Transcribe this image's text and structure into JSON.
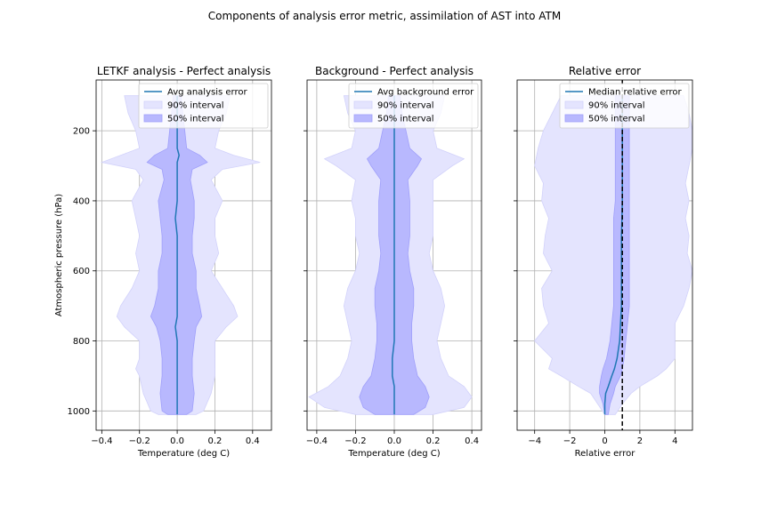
{
  "figure": {
    "title": "Components of analysis error metric, assimilation of AST into ATM"
  },
  "chart_data": [
    {
      "type": "area",
      "title": "LETKF analysis - Perfect analysis",
      "xlabel": "Temperature (deg C)",
      "ylabel": "Atmospheric pressure (hPa)",
      "xlim": [
        -0.43,
        0.5
      ],
      "ylim": [
        1055,
        55
      ],
      "y_inverted": true,
      "xticks": [
        -0.4,
        -0.2,
        0.0,
        0.2,
        0.4
      ],
      "xtick_labels": [
        "−0.4",
        "−0.2",
        "0.0",
        "0.2",
        "0.4"
      ],
      "yticks": [
        200,
        400,
        600,
        800,
        1000
      ],
      "ytick_labels": [
        "200",
        "400",
        "600",
        "800",
        "1000"
      ],
      "grid": true,
      "legend_position": "top-right",
      "legend": [
        "Avg analysis error",
        "90% interval",
        "50% interval"
      ],
      "levels": [
        100,
        150,
        200,
        250,
        270,
        290,
        310,
        340,
        400,
        450,
        500,
        550,
        600,
        650,
        700,
        730,
        760,
        800,
        850,
        880,
        900,
        950,
        1000,
        1010
      ],
      "avg": [
        0.0,
        0.0,
        0.0,
        0.0,
        0.01,
        0.0,
        0.0,
        0.0,
        0.0,
        -0.01,
        0.0,
        0.0,
        0.0,
        0.0,
        0.0,
        0.0,
        -0.01,
        0.0,
        0.0,
        0.0,
        0.0,
        0.0,
        0.0,
        0.0
      ],
      "p05": [
        -0.28,
        -0.26,
        -0.22,
        -0.2,
        -0.3,
        -0.4,
        -0.22,
        -0.18,
        -0.24,
        -0.22,
        -0.2,
        -0.22,
        -0.2,
        -0.24,
        -0.3,
        -0.32,
        -0.28,
        -0.2,
        -0.2,
        -0.22,
        -0.2,
        -0.18,
        -0.14,
        -0.1
      ],
      "p95": [
        0.28,
        0.26,
        0.22,
        0.2,
        0.3,
        0.44,
        0.24,
        0.18,
        0.24,
        0.2,
        0.2,
        0.22,
        0.18,
        0.24,
        0.3,
        0.32,
        0.26,
        0.2,
        0.2,
        0.2,
        0.2,
        0.18,
        0.14,
        0.1
      ],
      "p25": [
        -0.02,
        -0.03,
        -0.04,
        -0.05,
        -0.12,
        -0.16,
        -0.08,
        -0.07,
        -0.1,
        -0.09,
        -0.08,
        -0.08,
        -0.1,
        -0.1,
        -0.12,
        -0.14,
        -0.11,
        -0.09,
        -0.08,
        -0.08,
        -0.08,
        -0.09,
        -0.08,
        -0.05
      ],
      "p75": [
        0.02,
        0.03,
        0.04,
        0.05,
        0.12,
        0.16,
        0.08,
        0.07,
        0.09,
        0.09,
        0.08,
        0.08,
        0.1,
        0.1,
        0.12,
        0.13,
        0.1,
        0.09,
        0.08,
        0.08,
        0.08,
        0.09,
        0.08,
        0.05
      ]
    },
    {
      "type": "area",
      "title": "Background - Perfect analysis",
      "xlabel": "Temperature (deg C)",
      "ylabel": "",
      "xlim": [
        -0.45,
        0.45
      ],
      "ylim": [
        1055,
        55
      ],
      "y_inverted": true,
      "xticks": [
        -0.4,
        -0.2,
        0.0,
        0.2,
        0.4
      ],
      "xtick_labels": [
        "−0.4",
        "−0.2",
        "0.0",
        "0.2",
        "0.4"
      ],
      "yticks": [
        200,
        400,
        600,
        800,
        1000
      ],
      "ytick_labels": [
        "",
        "",
        "",
        "",
        ""
      ],
      "grid": true,
      "legend_position": "top-right",
      "legend": [
        "Avg background error",
        "90% interval",
        "50% interval"
      ],
      "levels": [
        100,
        150,
        200,
        250,
        280,
        300,
        340,
        400,
        450,
        500,
        550,
        600,
        650,
        700,
        750,
        800,
        850,
        900,
        930,
        960,
        990,
        1010
      ],
      "avg": [
        0.0,
        0.0,
        0.0,
        0.0,
        0.0,
        0.0,
        0.0,
        0.0,
        0.0,
        0.0,
        0.0,
        0.0,
        0.0,
        0.0,
        0.0,
        0.0,
        -0.01,
        -0.01,
        0.0,
        0.0,
        0.0,
        0.0
      ],
      "p05": [
        -0.26,
        -0.24,
        -0.2,
        -0.22,
        -0.36,
        -0.3,
        -0.2,
        -0.22,
        -0.2,
        -0.2,
        -0.18,
        -0.2,
        -0.24,
        -0.26,
        -0.24,
        -0.22,
        -0.24,
        -0.28,
        -0.34,
        -0.44,
        -0.36,
        -0.2
      ],
      "p95": [
        0.26,
        0.24,
        0.2,
        0.22,
        0.36,
        0.3,
        0.2,
        0.2,
        0.2,
        0.2,
        0.18,
        0.2,
        0.24,
        0.26,
        0.24,
        0.22,
        0.24,
        0.28,
        0.36,
        0.4,
        0.36,
        0.2
      ],
      "p25": [
        -0.03,
        -0.04,
        -0.06,
        -0.08,
        -0.14,
        -0.12,
        -0.07,
        -0.08,
        -0.08,
        -0.08,
        -0.07,
        -0.08,
        -0.1,
        -0.1,
        -0.09,
        -0.09,
        -0.1,
        -0.12,
        -0.16,
        -0.18,
        -0.16,
        -0.1
      ],
      "p75": [
        0.03,
        0.04,
        0.06,
        0.08,
        0.14,
        0.12,
        0.07,
        0.08,
        0.08,
        0.08,
        0.07,
        0.08,
        0.1,
        0.1,
        0.09,
        0.09,
        0.1,
        0.12,
        0.16,
        0.18,
        0.16,
        0.1
      ]
    },
    {
      "type": "area",
      "title": "Relative error",
      "xlabel": "Relative error",
      "ylabel": "",
      "xlim": [
        -5,
        5
      ],
      "ylim": [
        1055,
        55
      ],
      "y_inverted": true,
      "xticks": [
        -4,
        -2,
        0,
        2,
        4
      ],
      "xtick_labels": [
        "−4",
        "−2",
        "0",
        "2",
        "4"
      ],
      "yticks": [
        200,
        400,
        600,
        800,
        1000
      ],
      "ytick_labels": [
        "",
        "",
        "",
        "",
        ""
      ],
      "grid": true,
      "legend_position": "top-right",
      "legend": [
        "Median relative error",
        "90% interval",
        "50% interval"
      ],
      "reference_line_x": 1,
      "levels": [
        100,
        150,
        200,
        250,
        300,
        350,
        400,
        450,
        500,
        550,
        600,
        650,
        700,
        750,
        800,
        850,
        880,
        900,
        930,
        950,
        980,
        1010
      ],
      "avg": [
        1.0,
        1.0,
        1.0,
        1.0,
        1.0,
        1.0,
        1.0,
        0.98,
        0.95,
        0.95,
        0.95,
        0.95,
        0.95,
        0.9,
        0.85,
        0.7,
        0.55,
        0.4,
        0.2,
        0.05,
        0.0,
        0.0
      ],
      "p05": [
        -2.5,
        -3.0,
        -3.5,
        -3.8,
        -4.0,
        -3.5,
        -3.6,
        -3.2,
        -3.4,
        -3.5,
        -3.0,
        -3.6,
        -3.5,
        -3.2,
        -4.0,
        -3.0,
        -3.2,
        -2.5,
        -1.5,
        -0.8,
        -0.4,
        0.0
      ],
      "p95": [
        4.5,
        4.8,
        5.0,
        5.0,
        4.8,
        4.6,
        4.8,
        4.6,
        4.8,
        4.7,
        5.0,
        4.8,
        4.5,
        4.0,
        4.0,
        4.0,
        3.5,
        3.0,
        2.0,
        1.5,
        1.0,
        0.6
      ],
      "p25": [
        0.6,
        0.6,
        0.6,
        0.6,
        0.6,
        0.6,
        0.6,
        0.5,
        0.5,
        0.5,
        0.5,
        0.5,
        0.5,
        0.4,
        0.3,
        0.1,
        -0.1,
        -0.2,
        -0.3,
        -0.3,
        -0.1,
        0.0
      ],
      "p75": [
        1.4,
        1.4,
        1.4,
        1.4,
        1.4,
        1.4,
        1.4,
        1.4,
        1.4,
        1.4,
        1.4,
        1.4,
        1.4,
        1.3,
        1.2,
        1.1,
        1.0,
        0.9,
        0.6,
        0.5,
        0.3,
        0.2
      ]
    }
  ],
  "colors": {
    "line": "#1f77b4",
    "band90": "#e4e4fe",
    "band50": "#b8b8fe",
    "band50_edge": "#9f9ffa",
    "grid": "#b0b0b0",
    "reference_line": "#000000"
  }
}
